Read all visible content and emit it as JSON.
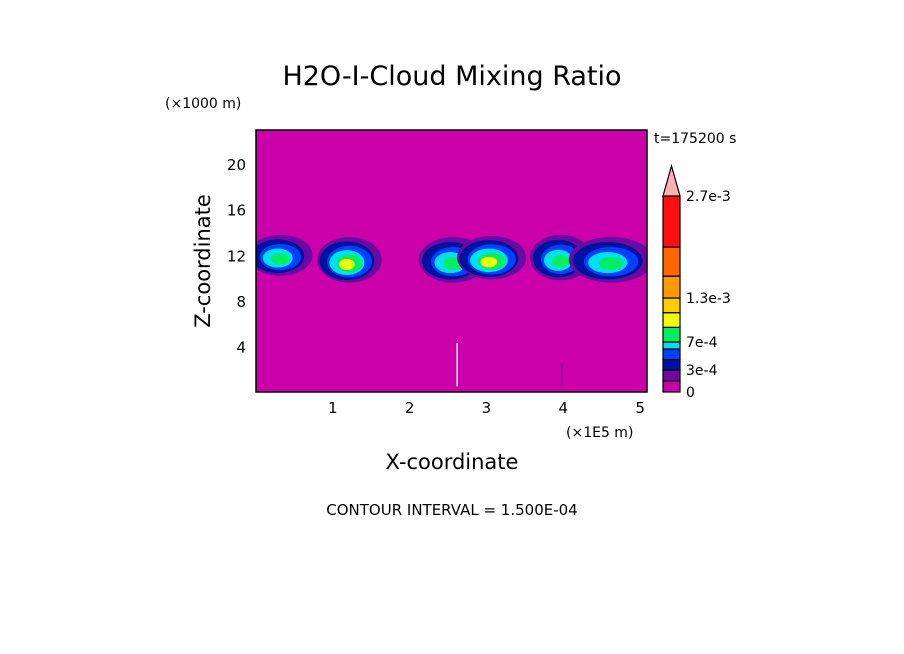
{
  "chart_data": {
    "type": "heatmap",
    "title": "H2O-I-Cloud Mixing Ratio",
    "xlabel": "X-coordinate",
    "ylabel": "Z-coordinate",
    "x_unit": "(×1E5 m)",
    "y_unit": "(×1000 m)",
    "time_label": "t=175200 s",
    "footer": "CONTOUR INTERVAL = 1.500E-04",
    "xlim": [
      0,
      5.09
    ],
    "ylim": [
      0,
      23
    ],
    "x_ticks": [
      1,
      2,
      3,
      4,
      5
    ],
    "x_tick_labels": [
      "1",
      "2",
      "3",
      "4",
      "5"
    ],
    "y_ticks": [
      4,
      8,
      12,
      16,
      20
    ],
    "y_tick_labels": [
      "4",
      "8",
      "12",
      "16",
      "20"
    ],
    "background_color": "#cc00aa",
    "colorbar": {
      "levels": [
        0,
        0.00015,
        0.0003,
        0.00045,
        0.0006,
        0.0007,
        0.0009,
        0.0011,
        0.0013,
        0.0016,
        0.002,
        0.0027
      ],
      "colors": [
        "#cc00aa",
        "#6a0aa0",
        "#0010a0",
        "#0040ff",
        "#00e0f0",
        "#00ee60",
        "#f0ff00",
        "#ffcc00",
        "#ff9900",
        "#ff6600",
        "#ff1010",
        "#ff7777"
      ],
      "extend_color": "#ffb0b0",
      "labels": [
        "0",
        "3e-4",
        "7e-4",
        "1.3e-3",
        "2.7e-3"
      ],
      "label_values": [
        0,
        0.0003,
        0.0007,
        0.0013,
        0.0027
      ]
    },
    "cloud_features": [
      {
        "x": 0.3,
        "z": 12.0,
        "rx": 0.42,
        "rz": 1.8,
        "max_level": 5
      },
      {
        "x": 1.2,
        "z": 11.6,
        "rx": 0.42,
        "rz": 2.0,
        "max_level": 6
      },
      {
        "x": 2.55,
        "z": 11.6,
        "rx": 0.45,
        "rz": 2.0,
        "max_level": 5
      },
      {
        "x": 3.05,
        "z": 11.8,
        "rx": 0.45,
        "rz": 1.9,
        "max_level": 6
      },
      {
        "x": 3.95,
        "z": 11.8,
        "rx": 0.4,
        "rz": 2.0,
        "max_level": 5
      },
      {
        "x": 4.6,
        "z": 11.6,
        "rx": 0.55,
        "rz": 2.0,
        "max_level": 5
      }
    ]
  }
}
